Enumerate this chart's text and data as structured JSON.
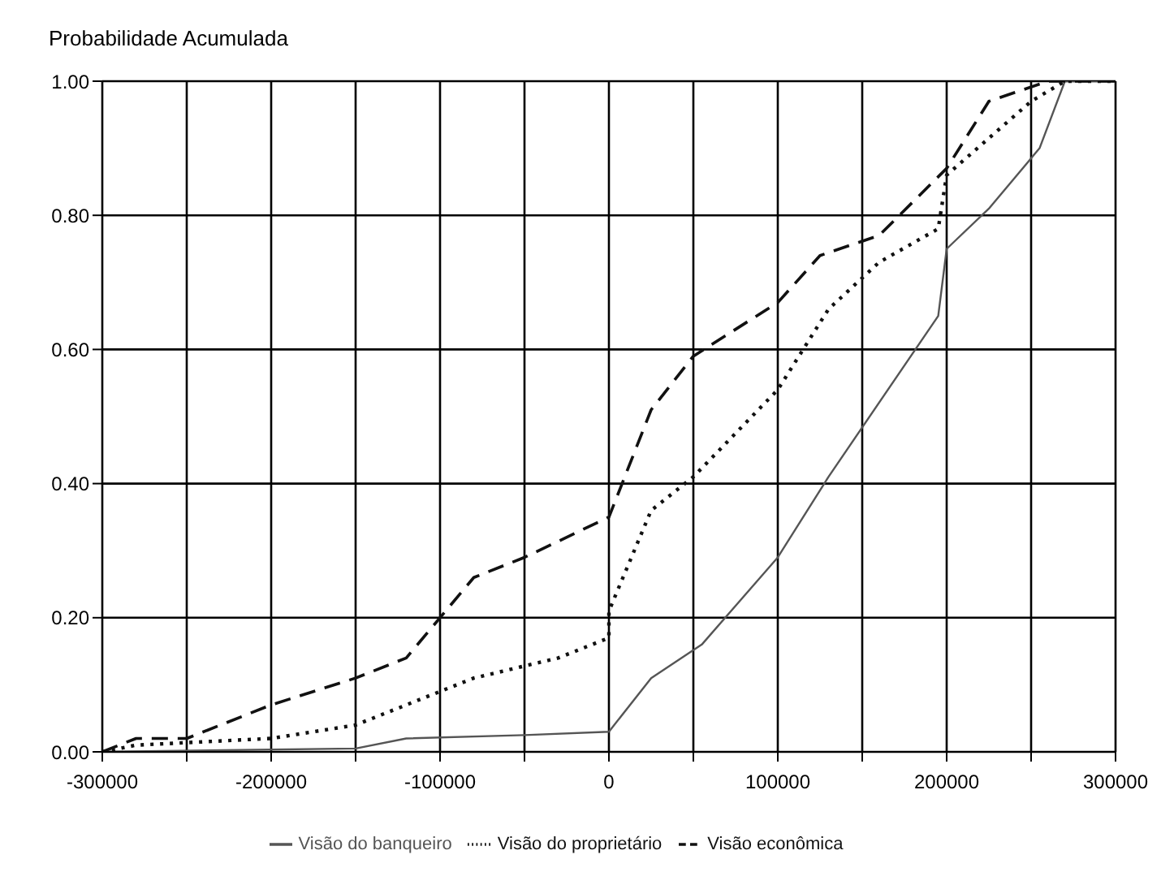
{
  "chart_data": {
    "type": "line",
    "ylabel": "Probabilidade Acumulada",
    "xlim": [
      -300000,
      300000
    ],
    "ylim": [
      0,
      1
    ],
    "xticks": [
      -300000,
      {
        "value": -250000,
        "label": null
      },
      -200000,
      {
        "value": -150000,
        "label": null
      },
      -100000,
      {
        "value": -50000,
        "label": null
      },
      0,
      {
        "value": 50000,
        "label": null
      },
      100000,
      {
        "value": 150000,
        "label": null
      },
      200000,
      {
        "value": 250000,
        "label": null
      },
      300000
    ],
    "yticks": [
      {
        "value": 0,
        "label": "0.00"
      },
      {
        "value": 0.2,
        "label": "0.20"
      },
      {
        "value": 0.4,
        "label": "0.40"
      },
      {
        "value": 0.6,
        "label": "0.60"
      },
      {
        "value": 0.8,
        "label": "0.80"
      },
      {
        "value": 1,
        "label": "1.00"
      }
    ],
    "grid": true,
    "legend": "bottom",
    "marker": "none",
    "series": [
      {
        "name": "Visão do banqueiro",
        "color": "#555555",
        "line_style": "solid",
        "x": [
          -300000,
          -150000,
          -120000,
          -50000,
          0,
          25000,
          55000,
          100000,
          130000,
          195000,
          200000,
          225000,
          255000,
          270000,
          300000
        ],
        "values": [
          0,
          0.005,
          0.02,
          0.025,
          0.03,
          0.11,
          0.16,
          0.29,
          0.41,
          0.65,
          0.75,
          0.81,
          0.9,
          1.0,
          1.0
        ]
      },
      {
        "name": "Visão do proprietário",
        "color": "#111111",
        "line_style": "dotted",
        "x": [
          -300000,
          -280000,
          -200000,
          -150000,
          -100000,
          -80000,
          -30000,
          0,
          0,
          25000,
          50000,
          100000,
          130000,
          160000,
          195000,
          200000,
          250000,
          270000,
          300000
        ],
        "values": [
          0,
          0.01,
          0.02,
          0.04,
          0.09,
          0.11,
          0.14,
          0.17,
          0.21,
          0.36,
          0.41,
          0.54,
          0.66,
          0.73,
          0.78,
          0.86,
          0.97,
          1.0,
          1.0
        ]
      },
      {
        "name": "Visão econômica",
        "color": "#111111",
        "line_style": "dashed",
        "x": [
          -300000,
          -280000,
          -250000,
          -200000,
          -150000,
          -120000,
          -80000,
          -50000,
          0,
          25000,
          50000,
          100000,
          125000,
          160000,
          200000,
          225000,
          260000,
          300000
        ],
        "values": [
          0,
          0.02,
          0.02,
          0.07,
          0.11,
          0.14,
          0.26,
          0.29,
          0.35,
          0.51,
          0.59,
          0.67,
          0.74,
          0.77,
          0.87,
          0.97,
          1.0,
          1.0
        ]
      }
    ]
  }
}
